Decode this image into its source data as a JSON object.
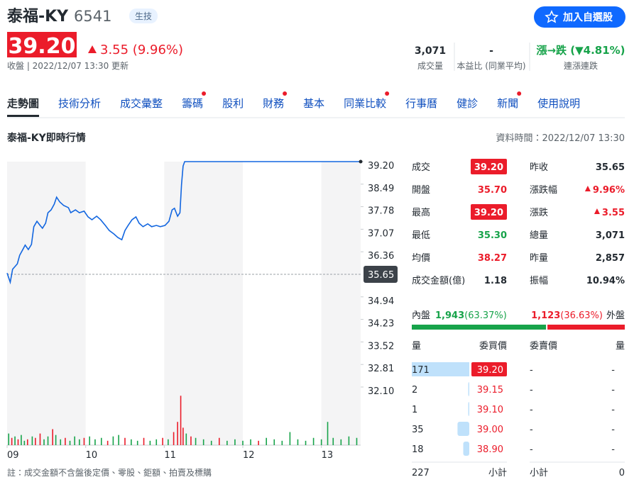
{
  "header": {
    "name": "泰福-KY",
    "code": "6541",
    "tag": "生技",
    "button": "加入自選股",
    "price": "39.20",
    "change": "3.55 (9.96%)",
    "status": "收盤 | 2022/12/07 13:30 更新"
  },
  "stats": [
    {
      "value": "3,071",
      "label": "成交量"
    },
    {
      "value": "-",
      "label": "本益比 (同業平均)"
    },
    {
      "value": "漲→跌 (▼4.81%)",
      "label": "連漲連跌"
    }
  ],
  "tabs": [
    {
      "label": "走勢圖",
      "dot": false
    },
    {
      "label": "技術分析",
      "dot": false
    },
    {
      "label": "成交彙整",
      "dot": false
    },
    {
      "label": "籌碼",
      "dot": true
    },
    {
      "label": "股利",
      "dot": false
    },
    {
      "label": "財務",
      "dot": true
    },
    {
      "label": "基本",
      "dot": false
    },
    {
      "label": "同業比較",
      "dot": true
    },
    {
      "label": "行事曆",
      "dot": false
    },
    {
      "label": "健診",
      "dot": false
    },
    {
      "label": "新聞",
      "dot": true
    },
    {
      "label": "使用說明",
      "dot": false
    }
  ],
  "active_tab": 0,
  "section": {
    "title": "泰福-KY即時行情",
    "time": "資料時間：2022/12/07 13:30"
  },
  "chart_data": {
    "type": "line",
    "color": "#1266e0",
    "x": [
      9.0,
      9.04,
      9.07,
      9.13,
      9.16,
      9.2,
      9.23,
      9.27,
      9.31,
      9.34,
      9.38,
      9.42,
      9.45,
      9.49,
      9.52,
      9.56,
      9.6,
      9.63,
      9.67,
      9.72,
      9.78,
      9.81,
      9.87,
      9.92,
      9.98,
      10.03,
      10.08,
      10.14,
      10.19,
      10.25,
      10.3,
      10.36,
      10.41,
      10.46,
      10.5,
      10.54,
      10.59,
      10.64,
      10.68,
      10.73,
      10.79,
      10.84,
      10.9,
      10.95,
      11.01,
      11.06,
      11.1,
      11.13,
      11.17,
      11.2,
      11.22,
      11.24,
      11.26,
      13.5
    ],
    "values": [
      35.69,
      35.4,
      35.81,
      35.98,
      36.25,
      36.43,
      36.57,
      36.43,
      36.59,
      37.15,
      37.32,
      37.19,
      37.1,
      37.26,
      37.59,
      37.68,
      37.86,
      38.08,
      37.93,
      37.82,
      37.75,
      37.59,
      37.68,
      37.59,
      37.64,
      37.46,
      37.37,
      37.48,
      37.37,
      37.19,
      37.03,
      36.92,
      36.81,
      36.74,
      37.03,
      37.19,
      37.37,
      37.46,
      37.26,
      37.15,
      37.24,
      37.15,
      37.19,
      37.15,
      37.19,
      37.32,
      37.68,
      37.73,
      37.48,
      37.59,
      38.48,
      39.06,
      39.2,
      39.2
    ],
    "xlim": [
      9,
      13.5
    ],
    "xticks": [
      {
        "value": 9,
        "label": "09"
      },
      10,
      11,
      12,
      13
    ],
    "ylim": [
      32.1,
      39.2
    ],
    "yticks": [
      {
        "value": 39.2,
        "label": "39.20"
      },
      38.49,
      37.78,
      37.07,
      36.36,
      35.65,
      34.94,
      34.23,
      33.52,
      32.81,
      {
        "value": 32.1,
        "label": "32.10"
      }
    ],
    "reference": 35.65,
    "volume": {
      "x": [
        9.02,
        9.06,
        9.1,
        9.14,
        9.18,
        9.22,
        9.26,
        9.32,
        9.36,
        9.42,
        9.47,
        9.52,
        9.58,
        9.62,
        9.68,
        9.74,
        9.8,
        9.86,
        9.92,
        9.98,
        10.05,
        10.12,
        10.2,
        10.28,
        10.35,
        10.42,
        10.5,
        10.58,
        10.66,
        10.74,
        10.82,
        10.9,
        10.98,
        11.05,
        11.12,
        11.17,
        11.21,
        11.24,
        11.28,
        11.34,
        11.4,
        11.5,
        11.6,
        11.7,
        11.8,
        11.9,
        12.0,
        12.1,
        12.2,
        12.3,
        12.4,
        12.5,
        12.6,
        12.7,
        12.8,
        12.9,
        13.0,
        13.08,
        13.15,
        13.25,
        13.35,
        13.45
      ],
      "values": [
        40,
        25,
        30,
        20,
        35,
        15,
        20,
        30,
        25,
        40,
        20,
        30,
        55,
        35,
        20,
        25,
        15,
        30,
        20,
        25,
        30,
        20,
        25,
        15,
        30,
        35,
        25,
        20,
        15,
        25,
        15,
        20,
        25,
        20,
        45,
        80,
        170,
        60,
        40,
        30,
        25,
        20,
        15,
        25,
        15,
        20,
        15,
        20,
        15,
        25,
        20,
        15,
        45,
        20,
        15,
        25,
        20,
        80,
        25,
        20,
        30,
        25
      ],
      "colors": [
        "#17a34a",
        "#eb1c2a",
        "#17a34a",
        "#eb1c2a",
        "#17a34a",
        "#17a34a",
        "#eb1c2a",
        "#17a34a",
        "#eb1c2a",
        "#eb1c2a",
        "#17a34a",
        "#17a34a",
        "#eb1c2a",
        "#17a34a",
        "#17a34a",
        "#eb1c2a",
        "#17a34a",
        "#17a34a",
        "#17a34a",
        "#eb1c2a",
        "#17a34a",
        "#17a34a",
        "#17a34a",
        "#eb1c2a",
        "#17a34a",
        "#17a34a",
        "#eb1c2a",
        "#17a34a",
        "#17a34a",
        "#eb1c2a",
        "#17a34a",
        "#17a34a",
        "#eb1c2a",
        "#17a34a",
        "#eb1c2a",
        "#eb1c2a",
        "#eb1c2a",
        "#eb1c2a",
        "#17a34a",
        "#eb1c2a",
        "#17a34a",
        "#17a34a",
        "#17a34a",
        "#eb1c2a",
        "#17a34a",
        "#17a34a",
        "#17a34a",
        "#17a34a",
        "#eb1c2a",
        "#17a34a",
        "#17a34a",
        "#17a34a",
        "#17a34a",
        "#17a34a",
        "#17a34a",
        "#17a34a",
        "#17a34a",
        "#17a34a",
        "#17a34a",
        "#17a34a",
        "#17a34a",
        "#17a34a"
      ],
      "vlim": [
        0,
        200
      ]
    }
  },
  "quote": {
    "rows": [
      [
        {
          "label": "成交",
          "value": "39.20",
          "style": "boxed"
        },
        {
          "label": "昨收",
          "value": "35.65",
          "style": "plain"
        }
      ],
      [
        {
          "label": "開盤",
          "value": "35.70",
          "style": "up"
        },
        {
          "label": "漲跌幅",
          "value": "9.96%",
          "style": "up-arrow"
        }
      ],
      [
        {
          "label": "最高",
          "value": "39.20",
          "style": "boxed"
        },
        {
          "label": "漲跌",
          "value": "3.55",
          "style": "up-arrow"
        }
      ],
      [
        {
          "label": "最低",
          "value": "35.30",
          "style": "down"
        },
        {
          "label": "總量",
          "value": "3,071",
          "style": "plain"
        }
      ],
      [
        {
          "label": "均價",
          "value": "38.27",
          "style": "up"
        },
        {
          "label": "昨量",
          "value": "2,857",
          "style": "plain"
        }
      ],
      [
        {
          "label": "成交金額(億)",
          "value": "1.18",
          "style": "plain"
        },
        {
          "label": "振幅",
          "value": "10.94%",
          "style": "plain"
        }
      ]
    ]
  },
  "trade_split": {
    "inner": {
      "label": "內盤",
      "value": "1,943",
      "percent": {
        "value": 63.37,
        "label": "(63.37%)"
      }
    },
    "outer": {
      "label": "外盤",
      "value": "1,123",
      "percent": {
        "value": 36.63,
        "label": "(36.63%)"
      }
    }
  },
  "order_book": {
    "headers": [
      "量",
      "委買價",
      "委賣價",
      "量"
    ],
    "bids": [
      {
        "volume": 171,
        "price": "39.20"
      },
      {
        "volume": 2,
        "price": "39.15"
      },
      {
        "volume": 1,
        "price": "39.10"
      },
      {
        "volume": 35,
        "price": "39.00"
      },
      {
        "volume": 18,
        "price": "38.90"
      }
    ],
    "asks": [
      {
        "price": "-",
        "volume": "-"
      },
      {
        "price": "-",
        "volume": "-"
      },
      {
        "price": "-",
        "volume": "-"
      },
      {
        "price": "-",
        "volume": "-"
      },
      {
        "price": "-",
        "volume": "-"
      }
    ],
    "subtotal": {
      "bid_volume": 227,
      "bid_label": "小計",
      "ask_label": "小計",
      "ask_volume": 0
    }
  },
  "note": "註：成交金額不含盤後定價、零股、鉅額、拍賣及標購"
}
